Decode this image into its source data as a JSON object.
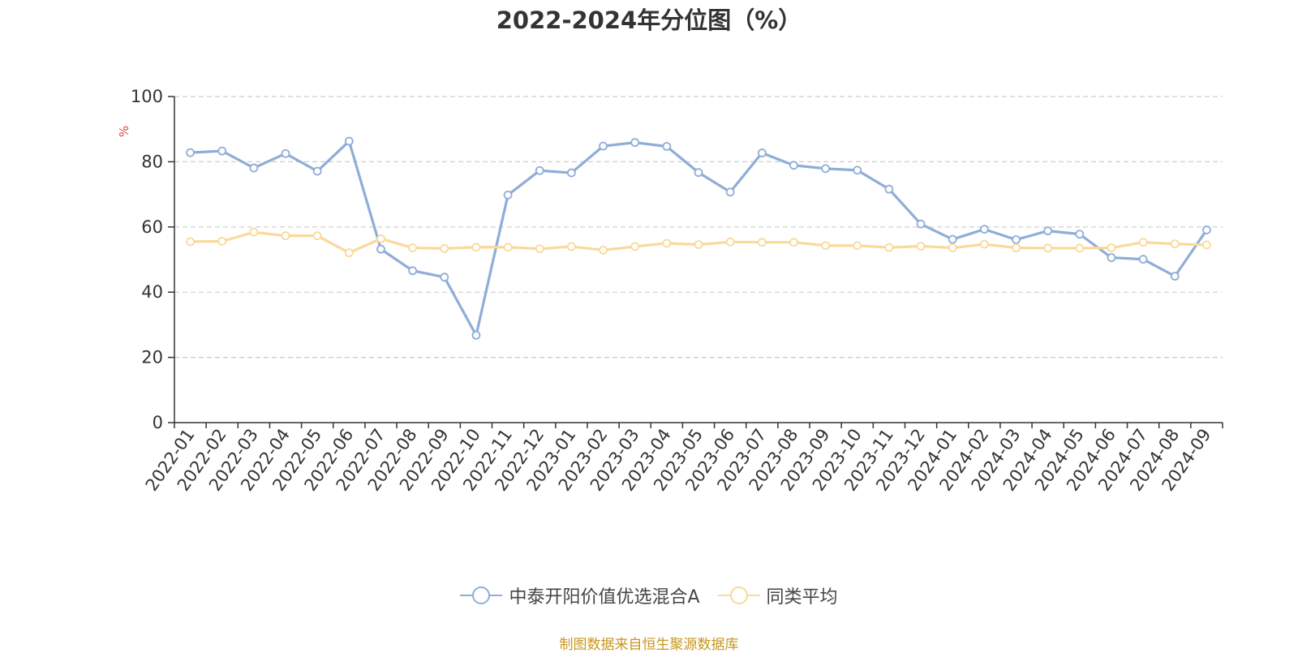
{
  "chart_data": {
    "type": "line",
    "title": "2022-2024年分位图（%）",
    "ylabel": "%",
    "xlabel": "",
    "ylim": [
      0,
      100
    ],
    "yticks": [
      0,
      20,
      40,
      60,
      80,
      100
    ],
    "grid": "horizontal-dashed",
    "legend_position": "bottom-center",
    "categories": [
      "2022-01",
      "2022-02",
      "2022-03",
      "2022-04",
      "2022-05",
      "2022-06",
      "2022-07",
      "2022-08",
      "2022-09",
      "2022-10",
      "2022-11",
      "2022-12",
      "2023-01",
      "2023-02",
      "2023-03",
      "2023-04",
      "2023-05",
      "2023-06",
      "2023-07",
      "2023-08",
      "2023-09",
      "2023-10",
      "2023-11",
      "2023-12",
      "2024-01",
      "2024-02",
      "2024-03",
      "2024-04",
      "2024-05",
      "2024-06",
      "2024-07",
      "2024-08",
      "2024-09"
    ],
    "series": [
      {
        "name": "中泰开阳价值优选混合A",
        "color": "#8fadd8",
        "values": [
          82.8,
          83.3,
          78.1,
          82.5,
          77.1,
          86.3,
          53.2,
          46.6,
          44.6,
          26.8,
          69.8,
          77.3,
          76.6,
          84.8,
          85.9,
          84.7,
          76.7,
          70.7,
          82.7,
          78.9,
          77.9,
          77.4,
          71.6,
          60.9,
          56.2,
          59.3,
          56.1,
          58.8,
          57.8,
          50.6,
          50.1,
          44.9,
          59.1
        ]
      },
      {
        "name": "同类平均",
        "color": "#fad99a",
        "values": [
          55.5,
          55.6,
          58.4,
          57.3,
          57.3,
          52.1,
          56.4,
          53.6,
          53.4,
          53.8,
          53.8,
          53.3,
          54.0,
          52.9,
          54.0,
          55.0,
          54.6,
          55.4,
          55.3,
          55.3,
          54.3,
          54.3,
          53.7,
          54.1,
          53.6,
          54.7,
          53.6,
          53.5,
          53.5,
          53.6,
          55.3,
          54.8,
          54.5
        ]
      }
    ]
  },
  "source_note": "制图数据来自恒生聚源数据库"
}
